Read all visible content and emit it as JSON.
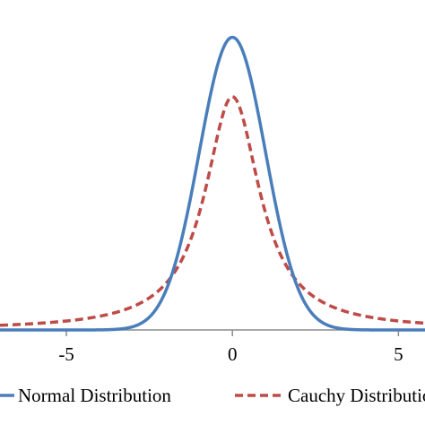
{
  "chart_data": {
    "type": "line",
    "title": "",
    "xlabel": "",
    "ylabel": "",
    "xlim": [
      -7,
      5.8
    ],
    "ylim": [
      0,
      0.44
    ],
    "x_ticks": [
      -5,
      0,
      5
    ],
    "x_tick_labels": [
      "-5",
      "0",
      "5"
    ],
    "grid": false,
    "legend_position": "bottom",
    "series": [
      {
        "name": "Normal Distribution",
        "function": "normal",
        "mean": 0,
        "sd": 1,
        "peak": 0.399,
        "color": "#4a7ebb",
        "style": "solid"
      },
      {
        "name": "Cauchy Distribution",
        "function": "cauchy",
        "location": 0,
        "scale": 1,
        "peak": 0.318,
        "color": "#be4b48",
        "style": "dashed"
      }
    ]
  }
}
